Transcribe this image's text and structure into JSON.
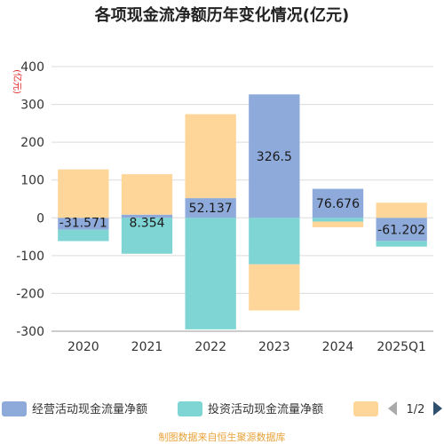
{
  "chart_data": {
    "type": "bar",
    "stacked": true,
    "title": "各项现金流净额历年变化情况(亿元)",
    "unit_label": "(亿元)",
    "categories": [
      "2020",
      "2021",
      "2022",
      "2023",
      "2024",
      "2025Q1"
    ],
    "ylim": [
      -300,
      400
    ],
    "yticks": [
      -300,
      -200,
      -100,
      0,
      100,
      200,
      300,
      400
    ],
    "grid": true,
    "legend_position": "bottom",
    "series": [
      {
        "name": "经营活动现金流量净额",
        "color": "#8eaadb",
        "values": [
          -31.571,
          8.354,
          52.137,
          326.5,
          76.676,
          -61.202
        ],
        "labels": [
          "-31.571",
          "8.354",
          "52.137",
          "326.5",
          "76.676",
          "-61.202"
        ]
      },
      {
        "name": "投资活动现金流量净额",
        "color": "#7fd4d4",
        "values": [
          -30,
          -95,
          -295,
          -123,
          -10,
          -15
        ]
      },
      {
        "name": "",
        "color": "#ffd699",
        "values": [
          128,
          107,
          222,
          -122,
          -15,
          40
        ]
      }
    ],
    "pagination": "1/2",
    "source": "制图数据来自恒生聚源数据库"
  }
}
